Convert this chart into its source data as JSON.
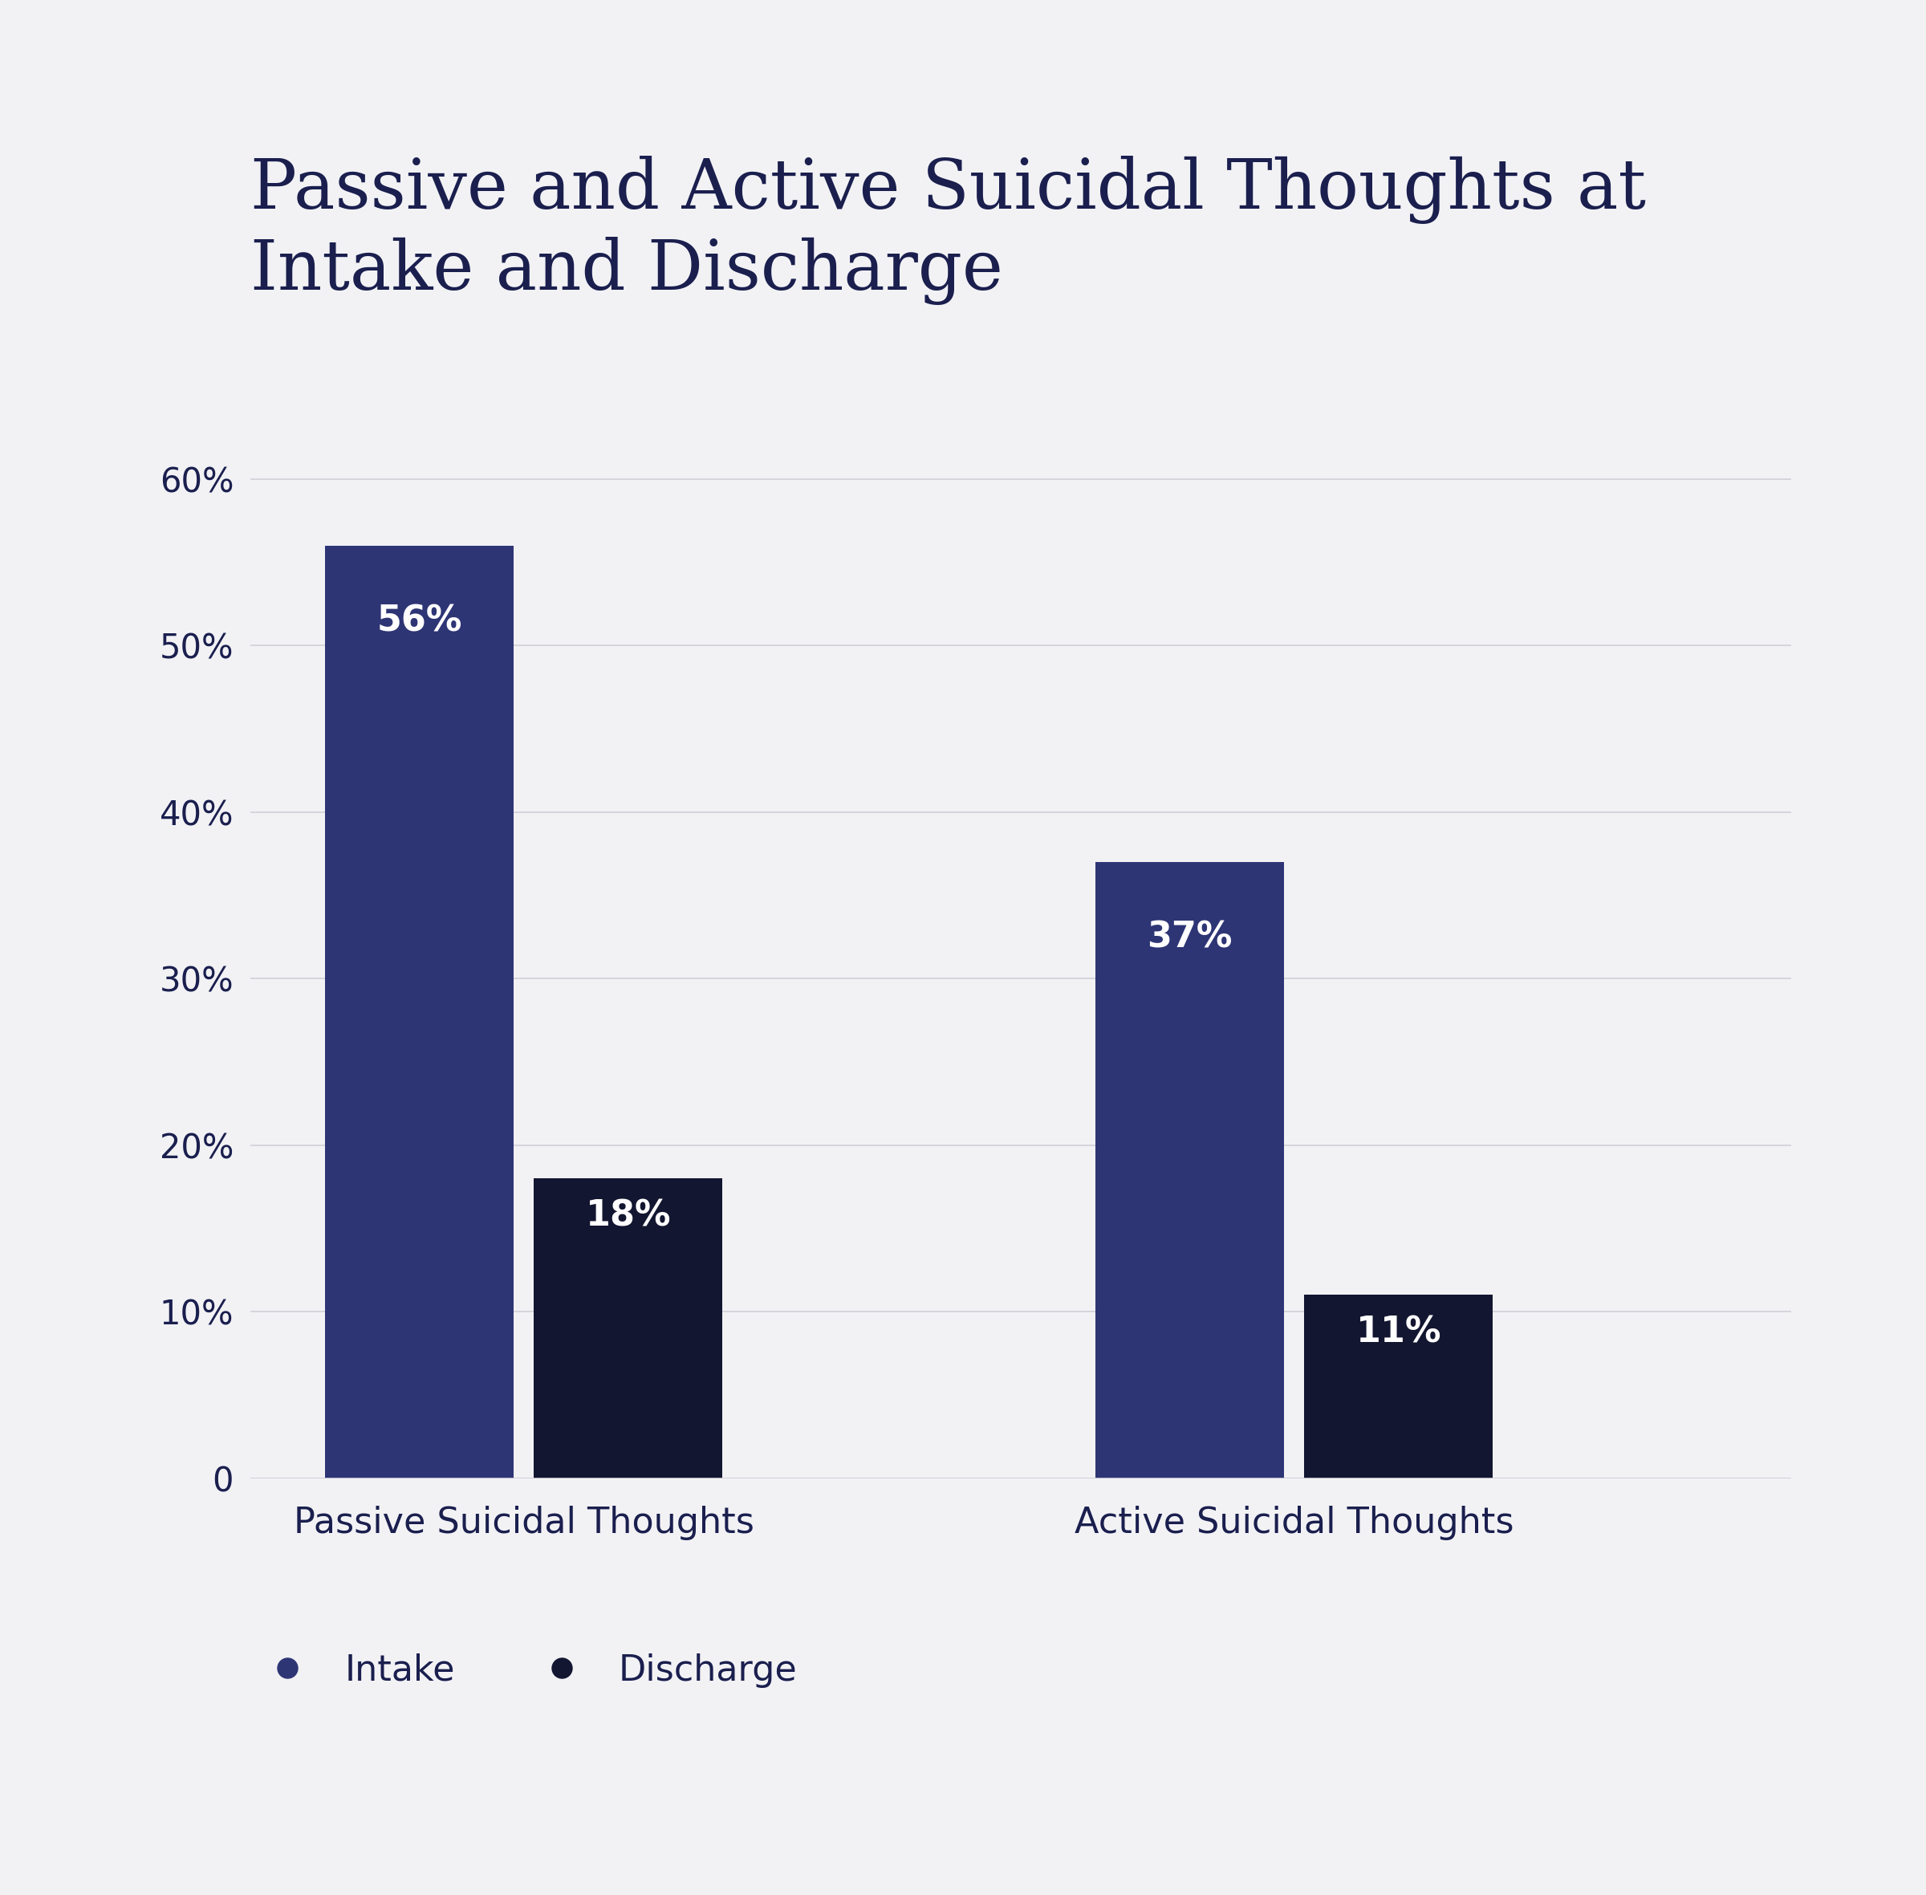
{
  "title": "Passive and Active Suicidal Thoughts at\nIntake and Discharge",
  "groups": [
    "Passive Suicidal Thoughts",
    "Active Suicidal Thoughts"
  ],
  "intake_values": [
    56,
    37
  ],
  "discharge_values": [
    18,
    11
  ],
  "intake_color": "#2e3575",
  "discharge_color": "#131630",
  "bar_labels_intake": [
    "56%",
    "37%"
  ],
  "bar_labels_discharge": [
    "18%",
    "11%"
  ],
  "yticks": [
    0,
    10,
    20,
    30,
    40,
    50,
    60
  ],
  "ytick_labels": [
    "0",
    "10%",
    "20%",
    "30%",
    "40%",
    "50%",
    "60%"
  ],
  "ylim": [
    0,
    66
  ],
  "background_color": "#f2f2f5",
  "title_color": "#1a1f4e",
  "axis_label_color": "#1a1f4e",
  "grid_color": "#d0d0d8",
  "legend_intake": "Intake",
  "legend_discharge": "Discharge",
  "bar_label_fontsize": 32,
  "title_fontsize": 62,
  "tick_fontsize": 30,
  "legend_fontsize": 32,
  "group_label_fontsize": 32,
  "bar_width": 0.38,
  "group_positions": [
    0.0,
    1.55
  ],
  "bar_spacing": 0.04
}
